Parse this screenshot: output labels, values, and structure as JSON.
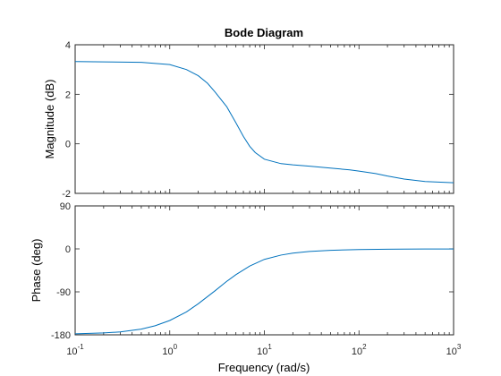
{
  "title": "Bode Diagram",
  "xlabel": "Frequency  (rad/s)",
  "colors": {
    "line": "#0072BD",
    "axes": "#262626",
    "background": "#ffffff"
  },
  "chart_data": [
    {
      "type": "line",
      "panel": "magnitude",
      "ylabel": "Magnitude (dB)",
      "xscale": "log",
      "xlim": [
        0.1,
        1000
      ],
      "ylim": [
        -2,
        4
      ],
      "yticks": [
        -2,
        0,
        2,
        4
      ],
      "ytick_labels": [
        "-2",
        "0",
        "2",
        "4"
      ],
      "x": [
        0.1,
        0.2,
        0.5,
        1,
        1.5,
        2,
        2.5,
        3,
        4,
        5,
        6,
        7,
        8,
        10,
        15,
        20,
        30,
        50,
        80,
        100,
        150,
        200,
        300,
        500,
        1000
      ],
      "y": [
        3.32,
        3.31,
        3.29,
        3.2,
        3.0,
        2.75,
        2.45,
        2.1,
        1.5,
        0.85,
        0.3,
        -0.1,
        -0.35,
        -0.62,
        -0.8,
        -0.85,
        -0.9,
        -0.98,
        -1.05,
        -1.1,
        -1.2,
        -1.3,
        -1.42,
        -1.52,
        -1.57
      ]
    },
    {
      "type": "line",
      "panel": "phase",
      "ylabel": "Phase (deg)",
      "xscale": "log",
      "xlim": [
        0.1,
        1000
      ],
      "ylim": [
        -180,
        90
      ],
      "yticks": [
        -180,
        -90,
        0,
        90
      ],
      "ytick_labels": [
        "-180",
        "-90",
        "0",
        "90"
      ],
      "x": [
        0.1,
        0.2,
        0.3,
        0.5,
        0.7,
        1,
        1.5,
        2,
        3,
        4,
        5,
        7,
        10,
        15,
        20,
        30,
        50,
        80,
        100,
        200,
        300,
        500,
        1000
      ],
      "y": [
        -178,
        -176,
        -174,
        -168,
        -161,
        -150,
        -132,
        -115,
        -88,
        -68,
        -54,
        -36,
        -22,
        -13,
        -9,
        -5.5,
        -3,
        -1.8,
        -1.5,
        -0.8,
        -0.5,
        -0.3,
        -0.2
      ]
    }
  ],
  "x_ticks": [
    {
      "base": "10",
      "exp": "-1"
    },
    {
      "base": "10",
      "exp": "0"
    },
    {
      "base": "10",
      "exp": "1"
    },
    {
      "base": "10",
      "exp": "2"
    },
    {
      "base": "10",
      "exp": "3"
    }
  ]
}
